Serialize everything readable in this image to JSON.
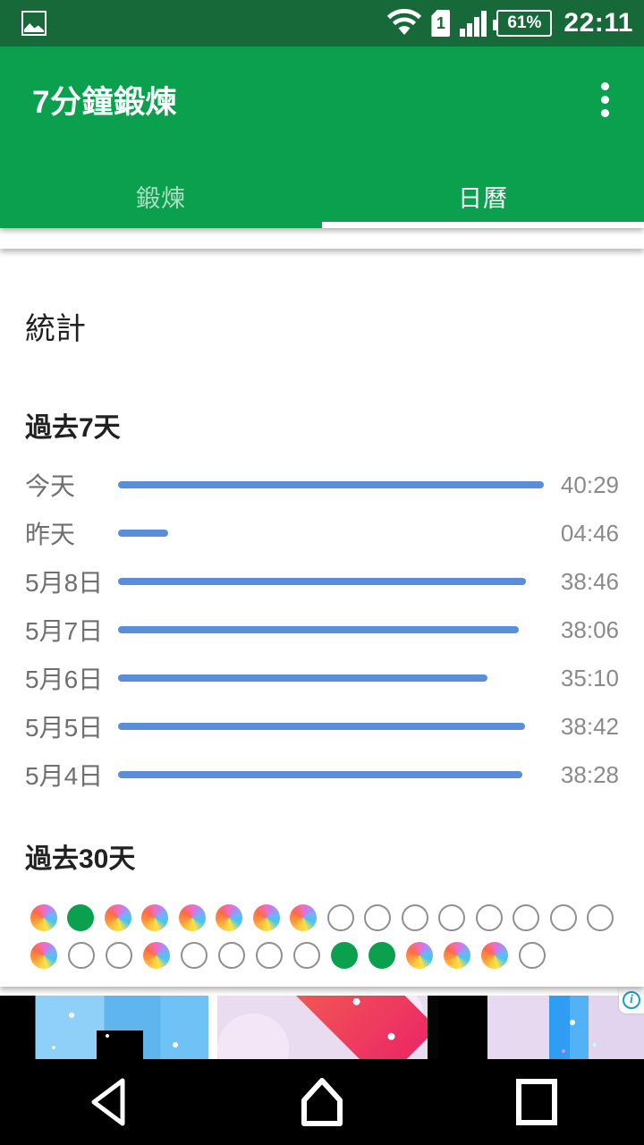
{
  "status_bar": {
    "time": "22:11",
    "battery_percent": "61%",
    "sim_badge": "1"
  },
  "app_bar": {
    "title": "7分鐘鍛煉",
    "tabs": [
      {
        "id": "workout",
        "label": "鍛煉",
        "selected": false
      },
      {
        "id": "calendar",
        "label": "日曆",
        "selected": true
      }
    ]
  },
  "stats": {
    "title": "統計",
    "last7": {
      "heading": "過去7天",
      "rows": [
        {
          "label": "今天",
          "value": "40:29",
          "percent": 100
        },
        {
          "label": "昨天",
          "value": "04:46",
          "percent": 11.8
        },
        {
          "label": "5月8日",
          "value": "38:46",
          "percent": 95.8
        },
        {
          "label": "5月7日",
          "value": "38:06",
          "percent": 94.1
        },
        {
          "label": "5月6日",
          "value": "35:10",
          "percent": 86.8
        },
        {
          "label": "5月5日",
          "value": "38:42",
          "percent": 95.6
        },
        {
          "label": "5月4日",
          "value": "38:28",
          "percent": 95.0
        }
      ]
    },
    "last30": {
      "heading": "過去30天",
      "rows": [
        [
          "rainbow",
          "green",
          "rainbow",
          "rainbow",
          "rainbow",
          "rainbow",
          "rainbow",
          "rainbow",
          "empty",
          "empty",
          "empty",
          "empty",
          "empty",
          "empty",
          "empty",
          "empty"
        ],
        [
          "rainbow",
          "empty",
          "empty",
          "rainbow",
          "empty",
          "empty",
          "empty",
          "empty",
          "green",
          "green",
          "rainbow",
          "rainbow",
          "rainbow",
          "empty"
        ]
      ]
    }
  },
  "ad": {
    "info_symbol": "i"
  },
  "colors": {
    "app_bar_green": "#0AA04E",
    "status_bar_green": "#17693A",
    "bar_blue": "#5A8EDB",
    "done_green": "#0AA04E",
    "ad_info_teal": "#179FC3"
  },
  "nav": {
    "icons": [
      "back",
      "home",
      "recents"
    ]
  }
}
